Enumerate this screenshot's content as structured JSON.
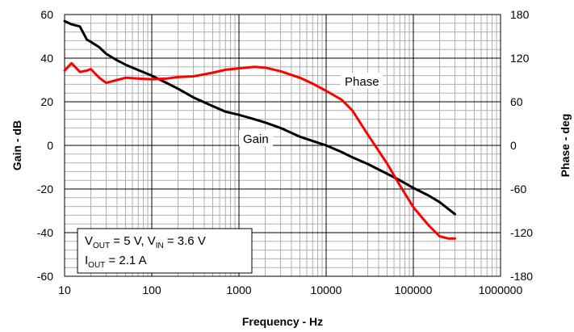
{
  "chart_data": {
    "type": "line",
    "title": "",
    "xlabel": "Frequency - Hz",
    "ylabel": "Gain - dB",
    "y2label": "Phase - deg",
    "x_scale": "log",
    "xlim": [
      10,
      1000000
    ],
    "ylim": [
      -60,
      60
    ],
    "y2lim": [
      -180,
      180
    ],
    "grid": true,
    "x_ticks": [
      "10",
      "100",
      "1000",
      "10000",
      "100000",
      "1000000"
    ],
    "y_ticks": [
      "60",
      "40",
      "20",
      "0",
      "-20",
      "-40",
      "-60"
    ],
    "y2_ticks": [
      "180",
      "120",
      "60",
      "0",
      "-60",
      "-120",
      "-180"
    ],
    "series": [
      {
        "name": "Gain",
        "axis": "left",
        "color": "#000000",
        "x": [
          10,
          12,
          15,
          18,
          20,
          25,
          30,
          40,
          50,
          70,
          100,
          150,
          200,
          300,
          500,
          700,
          1000,
          1500,
          2000,
          3000,
          5000,
          7000,
          10000,
          15000,
          20000,
          30000,
          50000,
          70000,
          100000,
          150000,
          200000,
          300000
        ],
        "values": [
          57,
          55.5,
          54.5,
          48.5,
          47.5,
          45,
          42,
          39,
          37,
          34.5,
          32,
          28.5,
          26,
          22,
          18,
          15.5,
          14,
          12,
          10.5,
          8,
          4,
          2,
          0,
          -3,
          -5.5,
          -8.5,
          -13,
          -16,
          -19.5,
          -23,
          -26,
          -31.5
        ]
      },
      {
        "name": "Phase",
        "axis": "right",
        "color": "#ff0000",
        "x": [
          10,
          12,
          15,
          18,
          20,
          25,
          30,
          40,
          50,
          70,
          100,
          150,
          200,
          300,
          500,
          700,
          1000,
          1500,
          2000,
          3000,
          5000,
          7000,
          10000,
          15000,
          20000,
          30000,
          50000,
          70000,
          100000,
          150000,
          200000,
          250000,
          300000
        ],
        "values": [
          103,
          113,
          101,
          103,
          105,
          93,
          86,
          90,
          93,
          92,
          91,
          92,
          94,
          95,
          100,
          104,
          106,
          108,
          107,
          102,
          93,
          85,
          75,
          63,
          48,
          15,
          -25,
          -55,
          -85,
          -110,
          -125,
          -128,
          -128
        ]
      }
    ],
    "annotations": {
      "gain_label": "Gain",
      "phase_label": "Phase"
    },
    "legend_box": {
      "line1_prefix": "V",
      "line1_sub1": "OUT",
      "line1_mid": " = 5 V, V",
      "line1_sub2": "IN",
      "line1_suffix": " = 3.6 V",
      "line2_prefix": "I",
      "line2_sub": "OUT",
      "line2_suffix": " = 2.1 A"
    }
  }
}
